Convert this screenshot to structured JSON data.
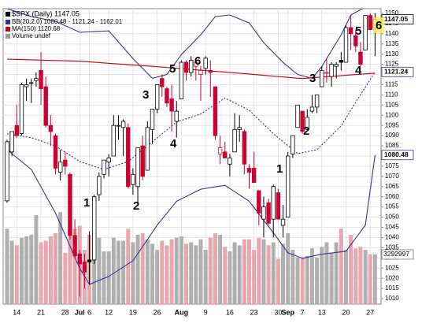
{
  "chart_data": {
    "type": "candlestick",
    "title": "$SPX (Daily) 1147.05",
    "title_color": "#000000",
    "legend": [
      {
        "text": "BB(20,2.0) 1080.48 - 1121.24 - 1162.01",
        "color": "#333399"
      },
      {
        "text": "MA(150) 1120.68",
        "color": "#cc0000"
      },
      {
        "text": "Volume undef",
        "color": "#999999"
      }
    ],
    "dates": [
      "Jun 10",
      "Jun 11",
      "Jun 14",
      "Jun 15",
      "Jun 16",
      "Jun 17",
      "Jun 18",
      "Jun 21",
      "Jun 22",
      "Jun 23",
      "Jun 24",
      "Jun 25",
      "Jun 28",
      "Jun 29",
      "Jun 30",
      "Jul 1",
      "Jul 2",
      "Jul 6",
      "Jul 7",
      "Jul 8",
      "Jul 9",
      "Jul 12",
      "Jul 13",
      "Jul 14",
      "Jul 15",
      "Jul 16",
      "Jul 19",
      "Jul 20",
      "Jul 21",
      "Jul 22",
      "Jul 23",
      "Jul 26",
      "Jul 27",
      "Jul 28",
      "Jul 29",
      "Jul 30",
      "Aug 2",
      "Aug 3",
      "Aug 4",
      "Aug 5",
      "Aug 6",
      "Aug 9",
      "Aug 10",
      "Aug 11",
      "Aug 12",
      "Aug 13",
      "Aug 16",
      "Aug 17",
      "Aug 18",
      "Aug 19",
      "Aug 20",
      "Aug 23",
      "Aug 24",
      "Aug 25",
      "Aug 26",
      "Aug 27",
      "Aug 30",
      "Aug 31",
      "Sep 1",
      "Sep 2",
      "Sep 3",
      "Sep 7",
      "Sep 8",
      "Sep 9",
      "Sep 10",
      "Sep 13",
      "Sep 14",
      "Sep 15",
      "Sep 16",
      "Sep 17",
      "Sep 20",
      "Sep 21",
      "Sep 22",
      "Sep 23",
      "Sep 24",
      "Sep 27",
      "Sep 28"
    ],
    "open": [
      1058,
      1082,
      1095,
      1091,
      1114,
      1116,
      1117,
      1122,
      1114,
      1095,
      1090,
      1072,
      1078,
      1071,
      1041,
      1032,
      1028,
      1029,
      1029,
      1061,
      1071,
      1077,
      1080,
      1095,
      1094,
      1094,
      1066,
      1065,
      1085,
      1073,
      1093,
      1103,
      1118,
      1113,
      1108,
      1097,
      1108,
      1126,
      1121,
      1124,
      1120,
      1123,
      1122,
      1114,
      1081,
      1082,
      1076,
      1082,
      1093,
      1092,
      1074,
      1074,
      1063,
      1049,
      1057,
      1049,
      1062,
      1046,
      1050,
      1081,
      1094,
      1102,
      1093,
      1102,
      1104,
      1114,
      1121,
      1119,
      1124,
      1127,
      1126,
      1143,
      1139,
      1131,
      1132,
      1149,
      1143
    ],
    "high": [
      1088,
      1092,
      1105,
      1116,
      1118,
      1118,
      1121,
      1131,
      1119,
      1100,
      1091,
      1083,
      1082,
      1072,
      1049,
      1034,
      1032,
      1043,
      1061,
      1072,
      1078,
      1081,
      1100,
      1100,
      1098,
      1096,
      1074,
      1084,
      1090,
      1097,
      1103,
      1115,
      1120,
      1114,
      1115,
      1107,
      1127,
      1127,
      1129,
      1126,
      1124,
      1129,
      1127,
      1114,
      1090,
      1087,
      1081,
      1101,
      1100,
      1093,
      1076,
      1082,
      1063,
      1060,
      1059,
      1066,
      1064,
      1056,
      1082,
      1090,
      1105,
      1102,
      1103,
      1110,
      1110,
      1124,
      1128,
      1126,
      1126,
      1131,
      1144,
      1149,
      1142,
      1136,
      1149,
      1150,
      1150
    ],
    "low": [
      1057,
      1080,
      1089,
      1090,
      1107,
      1106,
      1114,
      1105,
      1094,
      1085,
      1071,
      1068,
      1071,
      1039,
      1030,
      1011,
      1015,
      1017,
      1027,
      1058,
      1069,
      1070,
      1080,
      1088,
      1080,
      1064,
      1061,
      1056,
      1068,
      1073,
      1086,
      1101,
      1109,
      1104,
      1092,
      1089,
      1108,
      1117,
      1119,
      1117,
      1107,
      1120,
      1109,
      1088,
      1076,
      1079,
      1070,
      1082,
      1087,
      1071,
      1064,
      1067,
      1046,
      1040,
      1046,
      1040,
      1049,
      1040,
      1050,
      1079,
      1094,
      1091,
      1093,
      1101,
      1101,
      1114,
      1116,
      1114,
      1118,
      1122,
      1126,
      1132,
      1131,
      1124,
      1132,
      1142,
      1129
    ],
    "close": [
      1087,
      1092,
      1090,
      1115,
      1115,
      1116,
      1118,
      1113,
      1095,
      1092,
      1074,
      1077,
      1075,
      1041,
      1031,
      1027,
      1023,
      1028,
      1060,
      1070,
      1078,
      1079,
      1095,
      1095,
      1097,
      1065,
      1071,
      1084,
      1070,
      1094,
      1103,
      1115,
      1114,
      1106,
      1102,
      1102,
      1126,
      1121,
      1127,
      1126,
      1122,
      1128,
      1121,
      1090,
      1084,
      1079,
      1079,
      1093,
      1094,
      1076,
      1072,
      1067,
      1052,
      1055,
      1047,
      1065,
      1049,
      1049,
      1080,
      1090,
      1105,
      1092,
      1099,
      1104,
      1110,
      1122,
      1121,
      1125,
      1125,
      1126,
      1143,
      1140,
      1134,
      1125,
      1149,
      1142,
      1147.05
    ],
    "volume": [
      5000000,
      4200000,
      3900000,
      4400000,
      4500000,
      4600000,
      5900000,
      4100000,
      4200000,
      4500000,
      4700000,
      6100000,
      3400000,
      5500000,
      5000000,
      5200000,
      3600000,
      4600000,
      4800000,
      4400000,
      3500000,
      3500000,
      4400000,
      4200000,
      4200000,
      5000000,
      4100000,
      4600000,
      4700000,
      4300000,
      4000000,
      3600000,
      4200000,
      3900000,
      4300000,
      4400000,
      4500000,
      4000000,
      4100000,
      3900000,
      4300000,
      3600000,
      4400000,
      4700000,
      4600000,
      3800000,
      3500000,
      4100000,
      3900000,
      4300000,
      4300000,
      3600000,
      4400000,
      4300000,
      3900000,
      4100000,
      3000000,
      4000000,
      4700000,
      3600000,
      3100000,
      3100000,
      3200000,
      3700000,
      3100000,
      3800000,
      4100000,
      3400000,
      4100000,
      5000000,
      3600000,
      4600000,
      3700000,
      3800000,
      3600000,
      3300000,
      3292997
    ],
    "up_color": "#000000",
    "down_color": "#cc0033",
    "volume_up_color": "#b0b0b0",
    "volume_down_color": "#e8a6ae",
    "overlays": [
      {
        "color": "#333399",
        "dash": false,
        "x": [
          "Jun 10",
          "Jun 17",
          "Jun 24",
          "Jul 1",
          "Jul 12",
          "Jul 19",
          "Jul 23",
          "Jul 28",
          "Aug 2",
          "Aug 6",
          "Aug 11",
          "Aug 16",
          "Aug 20",
          "Aug 25",
          "Aug 31",
          "Sep 3",
          "Sep 9",
          "Sep 13",
          "Sep 17",
          "Sep 21",
          "Sep 24",
          "Sep 28"
        ],
        "values": [
          1152.3,
          1148.4,
          1146.1,
          1140.7,
          1141.4,
          1127.8,
          1118.1,
          1120,
          1129.8,
          1139.5,
          1148.4,
          1149.2,
          1145.3,
          1135.6,
          1125.9,
          1120,
          1118.1,
          1123.9,
          1139.5,
          1149.2,
          1153.1,
          1162.01
        ]
      },
      {
        "color": "#333399",
        "dash": true,
        "x": [
          "Jun 10",
          "Jun 17",
          "Jun 24",
          "Jul 1",
          "Jul 9",
          "Jul 16",
          "Jul 23",
          "Jul 30",
          "Aug 6",
          "Aug 13",
          "Aug 20",
          "Aug 27",
          "Sep 3",
          "Sep 10",
          "Sep 17",
          "Sep 22",
          "Sep 28"
        ],
        "values": [
          1090.9,
          1089,
          1085,
          1077.3,
          1073.4,
          1077.3,
          1087,
          1096.7,
          1100.6,
          1108.4,
          1102.5,
          1090.9,
          1081.2,
          1083.1,
          1094.8,
          1106.4,
          1121.24
        ]
      },
      {
        "color": "#333399",
        "dash": false,
        "x": [
          "Jun 10",
          "Jun 17",
          "Jun 24",
          "Jul 1",
          "Jul 6",
          "Jul 12",
          "Jul 19",
          "Jul 26",
          "Jul 30",
          "Aug 6",
          "Aug 13",
          "Aug 20",
          "Aug 27",
          "Sep 1",
          "Sep 7",
          "Sep 13",
          "Sep 20",
          "Sep 24",
          "Sep 28"
        ],
        "values": [
          1083.1,
          1073.4,
          1052,
          1024.8,
          1017,
          1020.9,
          1028.6,
          1046.1,
          1057.8,
          1063.7,
          1065.6,
          1057.8,
          1042.3,
          1032.5,
          1029.8,
          1031.8,
          1033.3,
          1046.1,
          1080.48
        ]
      },
      {
        "color": "#cc0000",
        "dash": false,
        "x": [
          "Jun 10",
          "Jul 1",
          "Jul 23",
          "Aug 16",
          "Sep 7",
          "Sep 28"
        ],
        "values": [
          1127.5,
          1126.5,
          1124,
          1121,
          1118,
          1120.68
        ]
      }
    ],
    "ylim": [
      1007.3,
      1152.3
    ],
    "yticks": [
      1010,
      1015,
      1020,
      1025,
      1030,
      1035,
      1040,
      1045,
      1050,
      1055,
      1060,
      1065,
      1070,
      1075,
      1080,
      1085,
      1090,
      1095,
      1100,
      1105,
      1110,
      1115,
      1120,
      1125,
      1130,
      1135,
      1140,
      1145,
      1150
    ],
    "volume_ylim": [
      0,
      7000000
    ],
    "xticks": [
      {
        "value": "Jun 14",
        "label": "14"
      },
      {
        "value": "Jun 21",
        "label": "21"
      },
      {
        "value": "Jun 28",
        "label": "28"
      },
      {
        "value": "Jul 1",
        "label": "Jul"
      },
      {
        "value": "Jul 6",
        "label": "6"
      },
      {
        "value": "Jul 12",
        "label": "12"
      },
      {
        "value": "Jul 19",
        "label": "19"
      },
      {
        "value": "Jul 26",
        "label": "26"
      },
      {
        "value": "Aug 2",
        "label": "Aug"
      },
      {
        "value": "Aug 9",
        "label": "9"
      },
      {
        "value": "Aug 16",
        "label": "16"
      },
      {
        "value": "Aug 23",
        "label": "23"
      },
      {
        "value": "Aug 30",
        "label": "30"
      },
      {
        "value": "Sep 1",
        "label": "Sep"
      },
      {
        "value": "Sep 7",
        "label": "7"
      },
      {
        "value": "Sep 13",
        "label": "13"
      },
      {
        "value": "Sep 20",
        "label": "20"
      },
      {
        "value": "Sep 27",
        "label": "27"
      }
    ],
    "grid": true,
    "annotations": [
      "1",
      "2",
      "3",
      "4",
      "5",
      "6",
      "1",
      "2",
      "3",
      "4",
      "5",
      "6"
    ]
  }
}
